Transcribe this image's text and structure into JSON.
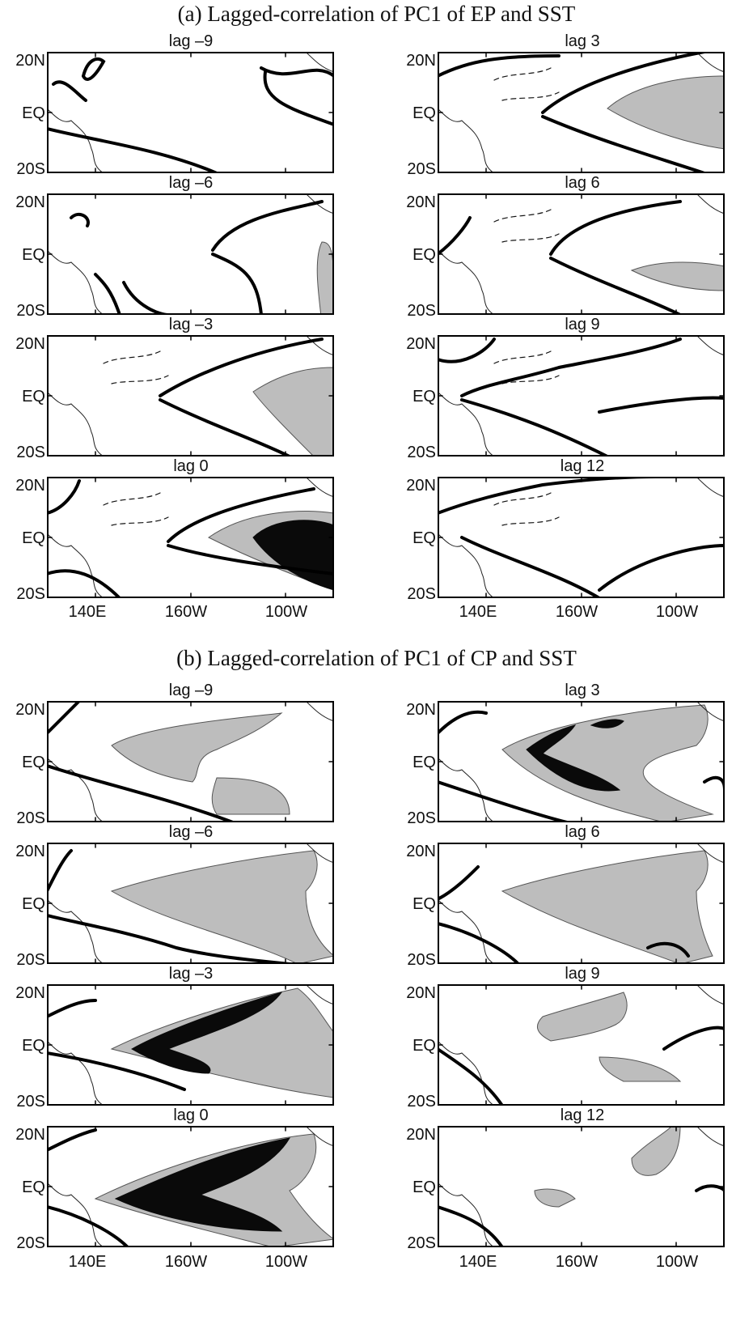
{
  "figure": {
    "sections": [
      {
        "id": "a",
        "title": "(a) Lagged-correlation of PC1 of EP and SST",
        "panels": [
          {
            "lag": "lag –9",
            "column": 0,
            "row": 0,
            "shaded": [],
            "dark": []
          },
          {
            "lag": "lag –6",
            "column": 0,
            "row": 1,
            "shaded": [],
            "dark": []
          },
          {
            "lag": "lag –3",
            "column": 0,
            "row": 2,
            "shaded": [],
            "dark": []
          },
          {
            "lag": "lag 0",
            "column": 0,
            "row": 3,
            "shaded": [],
            "dark": []
          },
          {
            "lag": "lag 3",
            "column": 1,
            "row": 0,
            "shaded": [],
            "dark": []
          },
          {
            "lag": "lag 6",
            "column": 1,
            "row": 1,
            "shaded": [],
            "dark": []
          },
          {
            "lag": "lag 9",
            "column": 1,
            "row": 2,
            "shaded": [],
            "dark": []
          },
          {
            "lag": "lag 12",
            "column": 1,
            "row": 3,
            "shaded": [],
            "dark": []
          }
        ]
      },
      {
        "id": "b",
        "title": "(b) Lagged-correlation of PC1 of CP and SST",
        "panels": [
          {
            "lag": "lag –9",
            "column": 0,
            "row": 0,
            "shaded": [],
            "dark": []
          },
          {
            "lag": "lag –6",
            "column": 0,
            "row": 1,
            "shaded": [],
            "dark": []
          },
          {
            "lag": "lag –3",
            "column": 0,
            "row": 2,
            "shaded": [],
            "dark": []
          },
          {
            "lag": "lag 0",
            "column": 0,
            "row": 3,
            "shaded": [],
            "dark": []
          },
          {
            "lag": "lag 3",
            "column": 1,
            "row": 0,
            "shaded": [],
            "dark": []
          },
          {
            "lag": "lag 6",
            "column": 1,
            "row": 1,
            "shaded": [],
            "dark": []
          },
          {
            "lag": "lag 9",
            "column": 1,
            "row": 2,
            "shaded": [],
            "dark": []
          },
          {
            "lag": "lag 12",
            "column": 1,
            "row": 3,
            "shaded": [],
            "dark": []
          }
        ]
      }
    ],
    "y_ticks": [
      "20N",
      "EQ",
      "20S"
    ],
    "x_ticks": [
      "140E",
      "160W",
      "100W"
    ],
    "colors": {
      "shade": "#bdbdbd",
      "dark": "#0a0a0a",
      "line": "#000000",
      "land": "#ffffff"
    }
  }
}
